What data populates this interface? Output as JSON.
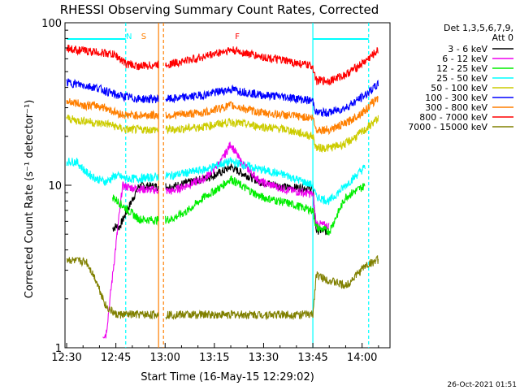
{
  "chart_data": {
    "type": "line",
    "title": "RHESSI Observing Summary Count Rates, Corrected",
    "xlabel": "Start Time (16-May-15 12:29:02)",
    "ylabel": "Corrected Count Rate (s⁻¹ detector⁻¹)",
    "yscale": "log",
    "ylim": [
      1,
      100
    ],
    "xlim_minutes": [
      12.5,
      111.5
    ],
    "x_ticks": [
      {
        "label": "12:30",
        "minute": 13
      },
      {
        "label": "12:45",
        "minute": 28
      },
      {
        "label": "13:00",
        "minute": 43
      },
      {
        "label": "13:15",
        "minute": 58
      },
      {
        "label": "13:30",
        "minute": 73
      },
      {
        "label": "13:45",
        "minute": 88
      },
      {
        "label": "14:00",
        "minute": 103
      }
    ],
    "y_ticks": [
      {
        "label": "1",
        "value": 1
      },
      {
        "label": "10",
        "value": 10
      },
      {
        "label": "100",
        "value": 100
      }
    ],
    "legend": {
      "position": "top-right",
      "header": [
        "Det 1,3,5,6,7,9,",
        "Att 0"
      ]
    },
    "series": [
      {
        "name": "3 - 6 keV",
        "color": "#000000",
        "points": [
          [
            27,
            5.4
          ],
          [
            28,
            5.6
          ],
          [
            29,
            5.5
          ],
          [
            35,
            9.9
          ],
          [
            45,
            9.8
          ],
          [
            55,
            11
          ],
          [
            60,
            12
          ],
          [
            63,
            13
          ],
          [
            66,
            12
          ],
          [
            72,
            10.5
          ],
          [
            80,
            9.7
          ],
          [
            88,
            9.6
          ],
          [
            89,
            5.3
          ],
          [
            93,
            5.2
          ]
        ]
      },
      {
        "name": "6 - 12 keV",
        "color": "#ee00ee",
        "points": [
          [
            24,
            1.2
          ],
          [
            25,
            1.2
          ],
          [
            30,
            9.9
          ],
          [
            35,
            9.5
          ],
          [
            45,
            9.2
          ],
          [
            55,
            11
          ],
          [
            60,
            14
          ],
          [
            63,
            18
          ],
          [
            66,
            14
          ],
          [
            72,
            10.5
          ],
          [
            80,
            9.4
          ],
          [
            88,
            8.8
          ],
          [
            89,
            5.8
          ],
          [
            93,
            5.6
          ]
        ]
      },
      {
        "name": "12 - 25 keV",
        "color": "#00ee00",
        "points": [
          [
            27,
            8.5
          ],
          [
            30,
            7.5
          ],
          [
            35,
            6.2
          ],
          [
            40,
            6.1
          ],
          [
            45,
            6.2
          ],
          [
            50,
            7
          ],
          [
            55,
            8.5
          ],
          [
            60,
            9.8
          ],
          [
            63,
            11
          ],
          [
            66,
            10
          ],
          [
            72,
            8.5
          ],
          [
            80,
            7.8
          ],
          [
            88,
            7
          ],
          [
            89,
            5.5
          ],
          [
            93,
            5.2
          ],
          [
            98,
            8.5
          ],
          [
            104,
            10
          ]
        ]
      },
      {
        "name": "25 - 50 keV",
        "color": "#00ffff",
        "points": [
          [
            13,
            14
          ],
          [
            16,
            14
          ],
          [
            19,
            12
          ],
          [
            22,
            11
          ],
          [
            25,
            10.5
          ],
          [
            28,
            11.5
          ],
          [
            31,
            11
          ],
          [
            35,
            11
          ],
          [
            45,
            11.5
          ],
          [
            55,
            12.5
          ],
          [
            60,
            13.5
          ],
          [
            63,
            14
          ],
          [
            66,
            13.5
          ],
          [
            72,
            12.5
          ],
          [
            80,
            11.5
          ],
          [
            88,
            10
          ],
          [
            89,
            8.5
          ],
          [
            93,
            8
          ],
          [
            98,
            10
          ],
          [
            104,
            13
          ]
        ]
      },
      {
        "name": "50 - 100 keV",
        "color": "#cccc00",
        "points": [
          [
            13,
            26
          ],
          [
            16,
            25
          ],
          [
            19,
            25
          ],
          [
            22,
            24
          ],
          [
            25,
            24
          ],
          [
            28,
            23
          ],
          [
            31,
            22
          ],
          [
            35,
            22
          ],
          [
            45,
            22
          ],
          [
            55,
            23
          ],
          [
            60,
            24
          ],
          [
            63,
            24.5
          ],
          [
            66,
            24
          ],
          [
            72,
            23
          ],
          [
            80,
            22
          ],
          [
            88,
            20
          ],
          [
            89,
            17
          ],
          [
            93,
            17
          ],
          [
            98,
            18
          ],
          [
            104,
            22
          ],
          [
            108,
            26
          ]
        ]
      },
      {
        "name": "100 - 300 keV",
        "color": "#0000ff",
        "points": [
          [
            13,
            43
          ],
          [
            16,
            42
          ],
          [
            19,
            41
          ],
          [
            22,
            40
          ],
          [
            25,
            38
          ],
          [
            28,
            36
          ],
          [
            31,
            35
          ],
          [
            35,
            34
          ],
          [
            45,
            34
          ],
          [
            55,
            36
          ],
          [
            60,
            38
          ],
          [
            63,
            39
          ],
          [
            66,
            38
          ],
          [
            72,
            36
          ],
          [
            80,
            35
          ],
          [
            88,
            33
          ],
          [
            89,
            28
          ],
          [
            93,
            28
          ],
          [
            98,
            30
          ],
          [
            104,
            36
          ],
          [
            108,
            42
          ]
        ]
      },
      {
        "name": "300 - 800 keV",
        "color": "#ff7f00",
        "points": [
          [
            13,
            33
          ],
          [
            16,
            32
          ],
          [
            19,
            31
          ],
          [
            22,
            31
          ],
          [
            25,
            30
          ],
          [
            28,
            28
          ],
          [
            31,
            27
          ],
          [
            35,
            27
          ],
          [
            45,
            27
          ],
          [
            55,
            28
          ],
          [
            60,
            30
          ],
          [
            63,
            31
          ],
          [
            66,
            30
          ],
          [
            72,
            28
          ],
          [
            80,
            27
          ],
          [
            88,
            26
          ],
          [
            89,
            22
          ],
          [
            93,
            22
          ],
          [
            98,
            24
          ],
          [
            104,
            29
          ],
          [
            108,
            35
          ]
        ]
      },
      {
        "name": "800 - 7000 keV",
        "color": "#ff0000",
        "points": [
          [
            13,
            70
          ],
          [
            16,
            68
          ],
          [
            19,
            67
          ],
          [
            22,
            66
          ],
          [
            25,
            65
          ],
          [
            28,
            63
          ],
          [
            31,
            56
          ],
          [
            35,
            54
          ],
          [
            45,
            56
          ],
          [
            55,
            62
          ],
          [
            60,
            66
          ],
          [
            63,
            68
          ],
          [
            66,
            66
          ],
          [
            72,
            62
          ],
          [
            80,
            58
          ],
          [
            88,
            54
          ],
          [
            89,
            44
          ],
          [
            93,
            44
          ],
          [
            98,
            48
          ],
          [
            104,
            58
          ],
          [
            108,
            68
          ]
        ]
      },
      {
        "name": "7000 - 15000 keV",
        "color": "#808000",
        "points": [
          [
            13,
            3.5
          ],
          [
            16,
            3.4
          ],
          [
            19,
            3.4
          ],
          [
            22,
            2.6
          ],
          [
            25,
            1.8
          ],
          [
            28,
            1.6
          ],
          [
            35,
            1.6
          ],
          [
            45,
            1.6
          ],
          [
            55,
            1.6
          ],
          [
            63,
            1.6
          ],
          [
            72,
            1.6
          ],
          [
            80,
            1.6
          ],
          [
            88,
            1.6
          ],
          [
            89,
            2.8
          ],
          [
            93,
            2.6
          ],
          [
            98,
            2.4
          ],
          [
            104,
            3.2
          ],
          [
            108,
            3.5
          ]
        ]
      }
    ],
    "annotations": [
      {
        "text": "N",
        "minute": 32,
        "color": "#00ffff"
      },
      {
        "text": "S",
        "minute": 36.5,
        "color": "#ff7f00"
      },
      {
        "text": "F",
        "minute": 65,
        "color": "#ff0000"
      }
    ],
    "vertical_markers": [
      {
        "minute": 31,
        "color": "#00ffff",
        "style": "dashed"
      },
      {
        "minute": 41,
        "color": "#ff7f00",
        "style": "solid"
      },
      {
        "minute": 42.5,
        "color": "#ff7f00",
        "style": "dashed"
      },
      {
        "minute": 88,
        "color": "#00ffff",
        "style": "solid"
      },
      {
        "minute": 105,
        "color": "#00ffff",
        "style": "dashed"
      }
    ],
    "timestamp": "26-Oct-2021 01:51"
  }
}
